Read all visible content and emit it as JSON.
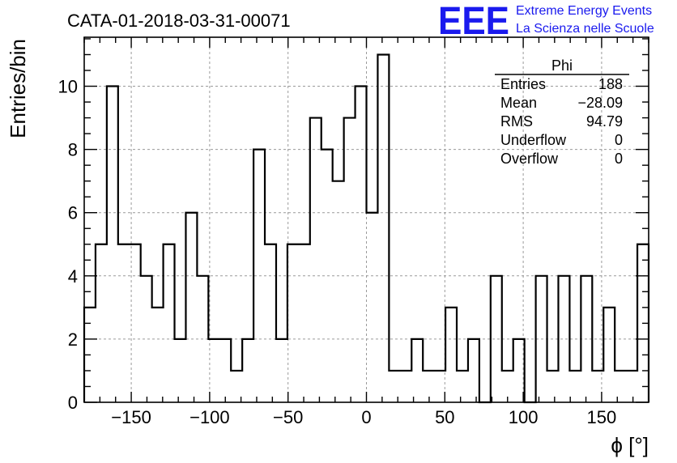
{
  "chart_data": {
    "type": "bar",
    "title": "CATA-01-2018-03-31-00071",
    "xlabel": "ϕ [°]",
    "ylabel": "Entries/bin",
    "xlim": [
      -180,
      180
    ],
    "ylim": [
      0,
      11.55
    ],
    "grid": true,
    "bin_edges": [
      -180,
      -172.8,
      -165.6,
      -158.4,
      -151.2,
      -144,
      -136.8,
      -129.6,
      -122.4,
      -115.2,
      -108,
      -100.8,
      -93.6,
      -86.4,
      -79.2,
      -72,
      -64.8,
      -57.6,
      -50.4,
      -43.2,
      -36,
      -28.8,
      -21.6,
      -14.4,
      -7.2,
      0,
      7.2,
      14.4,
      21.6,
      28.8,
      36,
      43.2,
      50.4,
      57.6,
      64.8,
      72,
      79.2,
      86.4,
      93.6,
      100.8,
      108,
      115.2,
      122.4,
      129.6,
      136.8,
      144,
      151.2,
      158.4,
      165.6,
      172.8,
      180
    ],
    "values": [
      3,
      5,
      10,
      5,
      5,
      4,
      3,
      5,
      2,
      6,
      4,
      2,
      2,
      1,
      2,
      8,
      5,
      2,
      5,
      5,
      9,
      8,
      7,
      9,
      10,
      6,
      11,
      1,
      1,
      2,
      1,
      1,
      3,
      1,
      2,
      0,
      4,
      1,
      2,
      0,
      4,
      1,
      4,
      1,
      4,
      1,
      3,
      1,
      1,
      5
    ],
    "x_ticks": [
      -150,
      -100,
      -50,
      0,
      50,
      100,
      150
    ],
    "x_tick_labels": [
      "−150",
      "−100",
      "−50",
      "0",
      "50",
      "100",
      "150"
    ],
    "y_ticks": [
      0,
      2,
      4,
      6,
      8,
      10
    ],
    "y_tick_labels": [
      "0",
      "2",
      "4",
      "6",
      "8",
      "10"
    ],
    "stats_box": {
      "title": "Phi",
      "rows": [
        {
          "label": "Entries",
          "value": "188"
        },
        {
          "label": "Mean",
          "value": "−28.09"
        },
        {
          "label": "RMS",
          "value": "94.79"
        },
        {
          "label": "Underflow",
          "value": "0"
        },
        {
          "label": "Overflow",
          "value": "0"
        }
      ]
    },
    "logo": {
      "mark": "EEE",
      "line1": "Extreme Energy Events",
      "line2": "La Scienza nelle Scuole"
    },
    "colors": {
      "line": "#000000",
      "logo": "#1a1aee",
      "grid": "#9a9a9a"
    }
  }
}
